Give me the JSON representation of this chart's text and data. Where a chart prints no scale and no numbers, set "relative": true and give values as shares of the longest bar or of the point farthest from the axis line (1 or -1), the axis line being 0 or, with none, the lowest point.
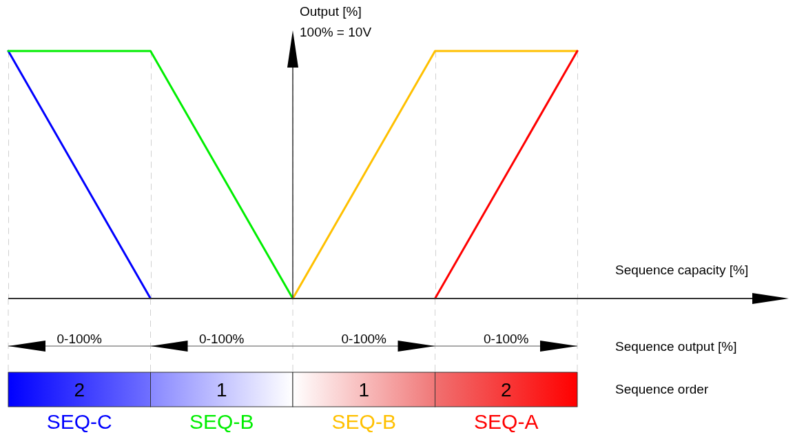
{
  "chart_data": {
    "type": "line",
    "relative": true,
    "xlabel": "Sequence capacity [%]",
    "ylabel": "Output [%]",
    "categories": [
      null,
      null,
      null,
      null,
      null
    ],
    "series": [
      {
        "name": "SEQ-C",
        "color": "#0000ff",
        "values": [
          1,
          0,
          null,
          null,
          null
        ]
      },
      {
        "name": "SEQ-B",
        "color": "#00ee00",
        "values": [
          1,
          1,
          0,
          null,
          null
        ]
      },
      {
        "name": "SEQ-B",
        "color": "#ffc000",
        "values": [
          null,
          null,
          0,
          1,
          1
        ]
      },
      {
        "name": "SEQ-A",
        "color": "#ff0000",
        "values": [
          null,
          null,
          null,
          0,
          1
        ]
      }
    ],
    "annotations": [
      "100% = 10V",
      "0-100%",
      "0-100%",
      "0-100%",
      "0-100%",
      "Sequence output [%]",
      "Sequence order",
      "2",
      "1",
      "1",
      "2"
    ],
    "grid": "x",
    "legend": false,
    "marker": "none",
    "line_style": "solid"
  }
}
